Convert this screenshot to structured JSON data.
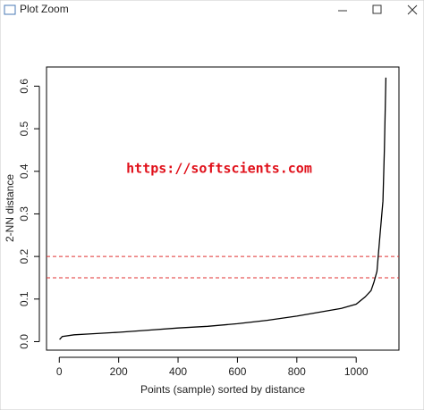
{
  "window": {
    "title": "Plot Zoom"
  },
  "chart_data": {
    "type": "line",
    "x_label": "Points (sample) sorted by distance",
    "y_label": "2-NN distance",
    "annotation": "https://softscients.com",
    "annotation_color": "#e0101a",
    "x": [
      1,
      10,
      50,
      100,
      200,
      300,
      400,
      500,
      600,
      700,
      800,
      900,
      950,
      1000,
      1030,
      1050,
      1060,
      1070,
      1080,
      1090,
      1095,
      1100
    ],
    "values": [
      0.005,
      0.012,
      0.016,
      0.018,
      0.022,
      0.027,
      0.032,
      0.036,
      0.042,
      0.05,
      0.06,
      0.072,
      0.078,
      0.088,
      0.105,
      0.12,
      0.14,
      0.165,
      0.25,
      0.33,
      0.45,
      0.62
    ],
    "color": "#000000",
    "hlines": [
      {
        "value": 0.2,
        "color": "#e03030"
      },
      {
        "value": 0.15,
        "color": "#e03030"
      }
    ],
    "xlim": [
      -43,
      1144
    ],
    "ylim": [
      -0.02,
      0.645
    ],
    "xticks": [
      0,
      200,
      400,
      600,
      800,
      1000
    ],
    "yticks": [
      {
        "value": 0,
        "label": "0.0"
      },
      0.1,
      0.2,
      0.3,
      0.4,
      0.5,
      0.6
    ]
  }
}
